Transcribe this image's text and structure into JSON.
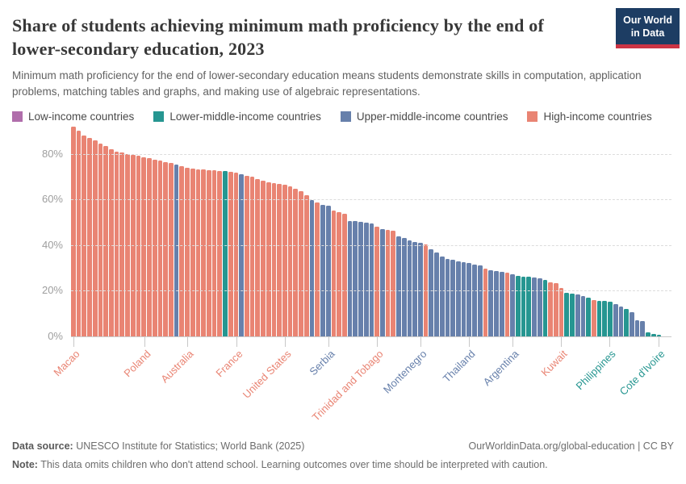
{
  "header": {
    "title": "Share of students achieving minimum math proficiency by the end of lower-secondary education, 2023",
    "subtitle": "Minimum math proficiency for the end of lower-secondary education means students demonstrate skills in computation, application problems, matching tables and graphs, and making use of algebraic representations.",
    "logo": {
      "line1": "Our World",
      "line2": "in Data",
      "bg_color": "#1d3d63",
      "accent_color": "#cc3444"
    }
  },
  "legend": [
    {
      "key": "L",
      "label": "Low-income countries"
    },
    {
      "key": "M",
      "label": "Lower-middle-income countries"
    },
    {
      "key": "U",
      "label": "Upper-middle-income countries"
    },
    {
      "key": "H",
      "label": "High-income countries"
    }
  ],
  "chart_data": {
    "type": "bar",
    "title": "Share of students achieving minimum math proficiency by the end of lower-secondary education, 2023",
    "unit": "%",
    "ylim": [
      0,
      95
    ],
    "yticks": [
      0,
      20,
      40,
      60,
      80
    ],
    "ytick_format": "{v}%",
    "grid": true,
    "legend_position": "top",
    "income_groups": {
      "L": {
        "label": "Low-income countries",
        "color": "rgba(162,85,156,0.85)"
      },
      "M": {
        "label": "Lower-middle-income countries",
        "color": "rgba(0,132,126,0.85)"
      },
      "U": {
        "label": "Upper-middle-income countries",
        "color": "rgba(76,106,156,0.85)"
      },
      "H": {
        "label": "High-income countries",
        "color": "rgba(229,110,90,0.85)"
      }
    },
    "bars": [
      [
        92,
        "H",
        "Macao"
      ],
      [
        90,
        "H"
      ],
      [
        88,
        "H"
      ],
      [
        87,
        "H"
      ],
      [
        86,
        "H"
      ],
      [
        84.5,
        "H"
      ],
      [
        83.5,
        "H"
      ],
      [
        82,
        "H"
      ],
      [
        81,
        "H"
      ],
      [
        80.5,
        "H"
      ],
      [
        80,
        "H"
      ],
      [
        79.5,
        "H"
      ],
      [
        79,
        "H"
      ],
      [
        78.5,
        "H",
        "Poland"
      ],
      [
        78,
        "H"
      ],
      [
        77.5,
        "H"
      ],
      [
        77,
        "H"
      ],
      [
        76.5,
        "H"
      ],
      [
        76,
        "H"
      ],
      [
        75.3,
        "U"
      ],
      [
        74.5,
        "H"
      ],
      [
        74,
        "H",
        "Australia"
      ],
      [
        73.5,
        "H"
      ],
      [
        73.2,
        "H"
      ],
      [
        73,
        "H"
      ],
      [
        72.8,
        "H"
      ],
      [
        72.7,
        "H"
      ],
      [
        72.5,
        "H"
      ],
      [
        72.3,
        "M"
      ],
      [
        72,
        "H"
      ],
      [
        71.7,
        "H",
        "France"
      ],
      [
        71,
        "U"
      ],
      [
        70.4,
        "H"
      ],
      [
        70,
        "H"
      ],
      [
        69,
        "H"
      ],
      [
        68.2,
        "H"
      ],
      [
        67.5,
        "H"
      ],
      [
        67,
        "H"
      ],
      [
        66.7,
        "H"
      ],
      [
        66.3,
        "H",
        "United States"
      ],
      [
        65.8,
        "H"
      ],
      [
        64.8,
        "H"
      ],
      [
        63.5,
        "H"
      ],
      [
        62,
        "H"
      ],
      [
        59.8,
        "U"
      ],
      [
        58.5,
        "H"
      ],
      [
        57.6,
        "U"
      ],
      [
        57.2,
        "U",
        "Serbia"
      ],
      [
        55.2,
        "H"
      ],
      [
        54.5,
        "H"
      ],
      [
        53.8,
        "H"
      ],
      [
        50.7,
        "U"
      ],
      [
        50.4,
        "U"
      ],
      [
        50.1,
        "U"
      ],
      [
        49.7,
        "U"
      ],
      [
        49.3,
        "U"
      ],
      [
        48,
        "H",
        "Trinidad and Tobago"
      ],
      [
        47,
        "U"
      ],
      [
        46.6,
        "H"
      ],
      [
        46.2,
        "H"
      ],
      [
        43.7,
        "U"
      ],
      [
        43.2,
        "U"
      ],
      [
        42.2,
        "U"
      ],
      [
        41.4,
        "U"
      ],
      [
        40.9,
        "U",
        "Montenegro"
      ],
      [
        40.2,
        "H"
      ],
      [
        38,
        "U"
      ],
      [
        36.6,
        "U"
      ],
      [
        35,
        "U"
      ],
      [
        34.1,
        "U"
      ],
      [
        33.6,
        "U"
      ],
      [
        33,
        "U"
      ],
      [
        32.5,
        "U"
      ],
      [
        32,
        "U",
        "Thailand"
      ],
      [
        31.5,
        "U"
      ],
      [
        31,
        "U"
      ],
      [
        29.8,
        "H"
      ],
      [
        28.9,
        "U"
      ],
      [
        28.6,
        "U"
      ],
      [
        28.4,
        "U"
      ],
      [
        27.9,
        "H"
      ],
      [
        27.2,
        "U",
        "Argentina"
      ],
      [
        26.5,
        "M"
      ],
      [
        26.3,
        "M"
      ],
      [
        26,
        "M"
      ],
      [
        25.8,
        "U"
      ],
      [
        25.4,
        "U"
      ],
      [
        24.9,
        "M"
      ],
      [
        23.7,
        "H"
      ],
      [
        23.3,
        "H"
      ],
      [
        21.1,
        "H",
        "Kuwait"
      ],
      [
        19,
        "M"
      ],
      [
        18.6,
        "M"
      ],
      [
        18.3,
        "U"
      ],
      [
        17.8,
        "U"
      ],
      [
        16.8,
        "M"
      ],
      [
        15.8,
        "H"
      ],
      [
        15.7,
        "M"
      ],
      [
        15.4,
        "M"
      ],
      [
        15.1,
        "M",
        "Philippines"
      ],
      [
        14,
        "U"
      ],
      [
        13.1,
        "U"
      ],
      [
        11.9,
        "M"
      ],
      [
        10.5,
        "U"
      ],
      [
        7.2,
        "U"
      ],
      [
        6.7,
        "U"
      ],
      [
        1.9,
        "M"
      ],
      [
        1.1,
        "M"
      ],
      [
        0.7,
        "M",
        "Cote d'Ivoire"
      ]
    ]
  },
  "footer": {
    "source_label": "Data source:",
    "source_text": " UNESCO Institute for Statistics; World Bank (2025)",
    "url_text": "OurWorldinData.org/global-education | CC BY",
    "note_label": "Note:",
    "note_text": " This data omits children who don't attend school. Learning outcomes over time should be interpreted with caution."
  }
}
